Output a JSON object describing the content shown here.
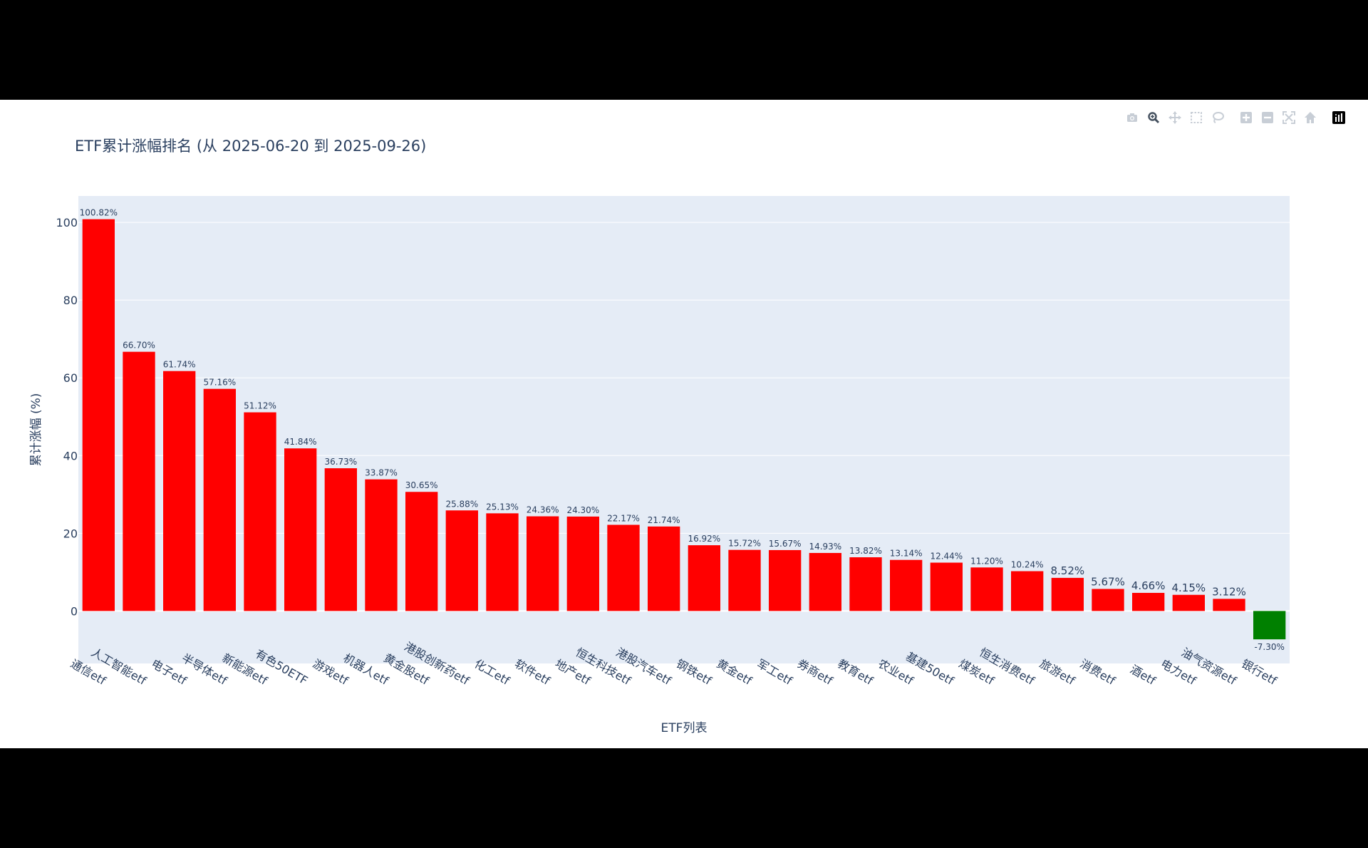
{
  "toolbar": {
    "icons": [
      "camera-icon",
      "zoom-icon",
      "pan-icon",
      "box-select-icon",
      "lasso-select-icon",
      "zoom-in-icon",
      "zoom-out-icon",
      "autoscale-icon",
      "reset-axes-icon",
      "plotly-logo-icon"
    ]
  },
  "chart_data": {
    "type": "bar",
    "title": "ETF累计涨幅排名 (从 2025-06-20 到 2025-09-26)",
    "xlabel": "ETF列表",
    "ylabel": "累计涨幅 (%)",
    "categories": [
      "通信etf",
      "人工智能etf",
      "电子etf",
      "半导体etf",
      "新能源etf",
      "有色50ETF",
      "游戏etf",
      "机器人etf",
      "黄金股etf",
      "港股创新药etf",
      "化工etf",
      "软件etf",
      "地产etf",
      "恒生科技etf",
      "港股汽车etf",
      "钢铁etf",
      "黄金etf",
      "军工etf",
      "券商etf",
      "教育etf",
      "农业etf",
      "基建50etf",
      "煤炭etf",
      "恒生消费etf",
      "旅游etf",
      "消费etf",
      "酒etf",
      "电力etf",
      "油气资源etf",
      "银行etf"
    ],
    "values": [
      100.82,
      66.7,
      61.74,
      57.16,
      51.12,
      41.84,
      36.73,
      33.87,
      30.65,
      25.88,
      25.13,
      24.36,
      24.3,
      22.17,
      21.74,
      16.92,
      15.72,
      15.67,
      14.93,
      13.82,
      13.14,
      12.44,
      11.2,
      10.24,
      8.52,
      5.67,
      4.66,
      4.15,
      3.12,
      -7.3
    ],
    "labels": [
      "100.82%",
      "66.70%",
      "61.74%",
      "57.16%",
      "51.12%",
      "41.84%",
      "36.73%",
      "33.87%",
      "30.65%",
      "25.88%",
      "25.13%",
      "24.36%",
      "24.30%",
      "22.17%",
      "21.74%",
      "16.92%",
      "15.72%",
      "15.67%",
      "14.93%",
      "13.82%",
      "13.14%",
      "12.44%",
      "11.20%",
      "10.24%",
      "8.52%",
      "5.67%",
      "4.66%",
      "4.15%",
      "3.12%",
      "-7.30%"
    ],
    "yticks": [
      0,
      20,
      40,
      60,
      80,
      100
    ],
    "ylim": [
      -13.5,
      106.8
    ],
    "positive_color": "#ff0000",
    "negative_color": "#008000",
    "plot_background": "#e5ecf6",
    "gridline_color": "#ffffff",
    "grid": true,
    "legend": false
  }
}
